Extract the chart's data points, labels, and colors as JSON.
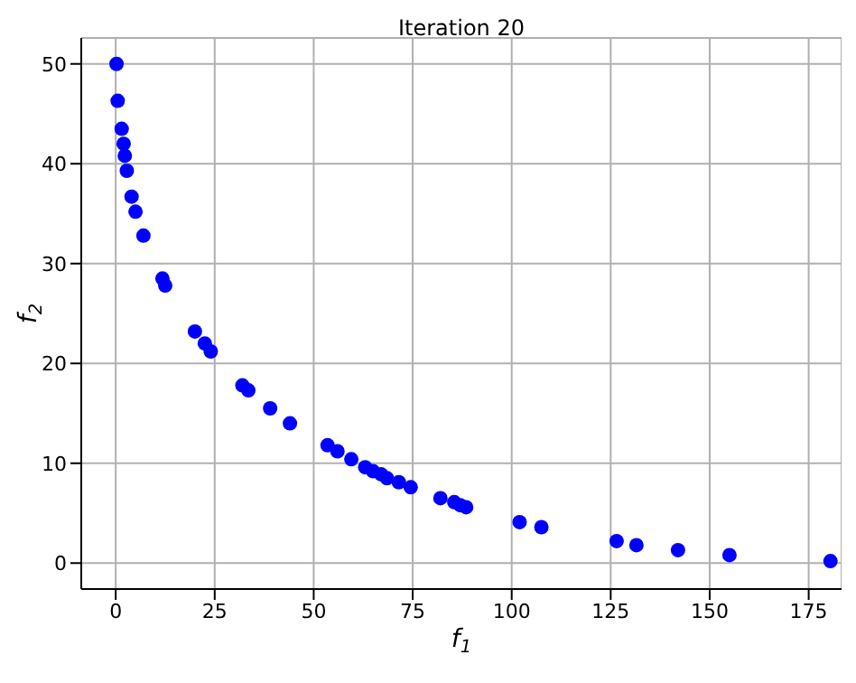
{
  "chart_data": {
    "type": "scatter",
    "title": "Iteration 20",
    "xlabel": "f$_{1}$",
    "ylabel": "f$_{2}$",
    "x": [
      0.2,
      0.5,
      1.5,
      1.8,
      2,
      2.3,
      2.7,
      2.8,
      4,
      5,
      7,
      11.8,
      12.5,
      20,
      22.5,
      24,
      32,
      33.5,
      39,
      44,
      53.5,
      56,
      59.5,
      63,
      65,
      67,
      68.5,
      71.5,
      74.5,
      82,
      85.5,
      87,
      88.5,
      102,
      107.5,
      126.5,
      131.5,
      142,
      155,
      180.5
    ],
    "series": [
      {
        "color": "#0000ff",
        "values": [
          50,
          46.3,
          43.5,
          null,
          42,
          40.8,
          null,
          39.3,
          36.7,
          35.2,
          32.8,
          28.5,
          27.8,
          23.2,
          22,
          21.2,
          17.8,
          17.3,
          15.5,
          14,
          11.8,
          11.2,
          10.4,
          9.6,
          9.2,
          8.9,
          8.5,
          8.1,
          7.6,
          6.5,
          6.1,
          5.8,
          5.6,
          4.1,
          3.6,
          2.2,
          1.8,
          1.3,
          0.8,
          0.2
        ]
      }
    ],
    "xlim": [
      -8.7,
      183.3
    ],
    "ylim": [
      -2.6,
      52.6
    ],
    "xticks": [
      0,
      25,
      50,
      75,
      100,
      125,
      150,
      175
    ],
    "yticks": [
      0,
      10,
      20,
      30,
      40,
      50
    ],
    "grid": true,
    "legend": false,
    "marker": "circle"
  }
}
